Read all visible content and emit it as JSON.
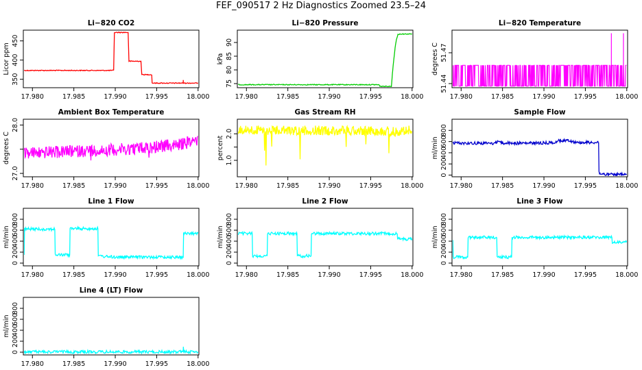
{
  "title": "FEF_090517  2 Hz Diagnostics Zoomed 23.5–24",
  "chart_data": [
    {
      "type": "line",
      "title": "Li−820 CO2",
      "ylabel": "Licor ppm",
      "color": "#ff0000",
      "xlim": [
        17.9789,
        18.0001
      ],
      "ylim": [
        328,
        478
      ],
      "xticks": [
        "17.980",
        "17.985",
        "17.990",
        "17.995",
        "18.000"
      ],
      "yticks": [
        "350",
        "400",
        "450"
      ],
      "x": [
        17.979,
        17.9898,
        17.98981,
        17.9899,
        17.99155,
        17.99165,
        17.9931,
        17.9932,
        17.9944,
        17.99445,
        17.9982,
        17.99821,
        17.99822,
        18.0
      ],
      "y": [
        373,
        373,
        375,
        472,
        472,
        397,
        397,
        362,
        362,
        340,
        340,
        348,
        340,
        340
      ],
      "series": []
    },
    {
      "type": "line",
      "title": "Li−820 Pressure",
      "ylabel": "kPa",
      "color": "#00cc00",
      "xlim": [
        17.9789,
        18.0001
      ],
      "ylim": [
        73.5,
        94.5
      ],
      "xticks": [
        "17.980",
        "17.985",
        "17.990",
        "17.995",
        "18.000"
      ],
      "yticks": [
        "75",
        "80",
        "85",
        "90"
      ],
      "x": [
        17.979,
        17.996,
        17.9961,
        17.9975,
        17.99765,
        17.9978,
        17.99795,
        17.9981,
        17.9983,
        17.9985,
        18.0
      ],
      "y": [
        74.6,
        74.6,
        74.0,
        74.0,
        79.5,
        84.0,
        88.0,
        91.0,
        92.9,
        93.1,
        93.1
      ],
      "series": []
    },
    {
      "type": "line",
      "title": "Li−820 Temperature",
      "ylabel": "degrees C",
      "color": "#ff00ff",
      "xlim": [
        17.9789,
        18.0001
      ],
      "ylim": [
        51.436,
        51.492
      ],
      "xticks": [
        "17.980",
        "17.985",
        "17.990",
        "17.995",
        "18.000"
      ],
      "yticks": [
        "51.44",
        "51.47"
      ],
      "x": [
        17.979,
        17.98,
        17.981,
        17.99814,
        17.9815,
        17.983,
        17.986,
        17.988,
        17.99,
        17.992,
        17.994,
        17.996,
        17.998,
        17.9996,
        17.99965,
        18.0
      ],
      "y": [
        51.4578,
        51.4578,
        51.4578,
        51.489,
        51.4578,
        51.4578,
        51.4578,
        51.4578,
        51.4578,
        51.4578,
        51.4578,
        51.4578,
        51.4578,
        51.489,
        51.4578,
        51.4578
      ],
      "series": []
    },
    {
      "type": "line",
      "title": "Ambient Box Temperature",
      "ylabel": "degrees C",
      "color": "#ff00ff",
      "xlim": [
        17.9789,
        18.0001
      ],
      "ylim": [
        26.93,
        28.12
      ],
      "xticks": [
        "17.980",
        "17.985",
        "17.990",
        "17.995",
        "18.000"
      ],
      "yticks": [
        "27.0",
        "",
        "28.0"
      ],
      "x": [
        17.979,
        17.983,
        17.987,
        17.991,
        17.995,
        17.998,
        18.0
      ],
      "y": [
        27.42,
        27.44,
        27.47,
        27.5,
        27.55,
        27.6,
        27.7
      ],
      "series": []
    },
    {
      "type": "line",
      "title": "Gas Stream RH",
      "ylabel": "percent",
      "color": "#ffff00",
      "xlim": [
        17.9789,
        18.0001
      ],
      "ylim": [
        0.38,
        2.55
      ],
      "xticks": [
        "17.980",
        "17.985",
        "17.990",
        "17.995",
        "18.000"
      ],
      "yticks": [
        "1.0",
        "",
        "2.0"
      ],
      "x": [
        17.979,
        17.983,
        17.987,
        17.991,
        17.995,
        17.998,
        18.0
      ],
      "y": [
        2.15,
        2.12,
        2.13,
        2.12,
        2.13,
        2.08,
        2.15
      ],
      "series": []
    },
    {
      "type": "line",
      "title": "Sample Flow",
      "ylabel": "ml/min",
      "color": "#0000cc",
      "xlim": [
        17.9789,
        18.0001
      ],
      "ylim": [
        -30,
        1000
      ],
      "xticks": [
        "17.980",
        "17.985",
        "17.990",
        "17.995",
        "18.000"
      ],
      "yticks": [
        "0",
        "200",
        "400",
        "600",
        "800"
      ],
      "x": [
        17.979,
        17.984,
        17.98445,
        17.985,
        17.988,
        17.991,
        17.992,
        17.993,
        17.994,
        17.9966,
        17.99665,
        17.9968,
        17.9975,
        18.0
      ],
      "y": [
        575,
        570,
        610,
        575,
        570,
        580,
        620,
        620,
        585,
        585,
        60,
        20,
        10,
        10
      ],
      "series": []
    },
    {
      "type": "line",
      "title": "Line 1 Flow",
      "ylabel": "ml/min",
      "color": "#00ffff",
      "xlim": [
        17.9789,
        18.0001
      ],
      "ylim": [
        -50,
        1000
      ],
      "xticks": [
        "17.980",
        "17.985",
        "17.990",
        "17.995",
        "18.000"
      ],
      "yticks": [
        "0",
        "200",
        "400",
        "600",
        "800"
      ],
      "x": [
        17.979,
        17.97905,
        17.9827,
        17.98275,
        17.9845,
        17.98455,
        17.9879,
        17.98795,
        17.99,
        17.9982,
        17.99825,
        18.0
      ],
      "y": [
        150,
        620,
        620,
        150,
        150,
        630,
        630,
        130,
        110,
        110,
        540,
        540
      ],
      "series": []
    },
    {
      "type": "line",
      "title": "Line 2 Flow",
      "ylabel": "ml/min",
      "color": "#00ffff",
      "xlim": [
        17.9789,
        18.0001
      ],
      "ylim": [
        -50,
        1000
      ],
      "xticks": [
        "17.980",
        "17.985",
        "17.990",
        "17.995",
        "18.000"
      ],
      "yticks": [
        "0",
        "200",
        "400",
        "600",
        "800"
      ],
      "x": [
        17.979,
        17.9807,
        17.98075,
        17.9825,
        17.98255,
        17.9861,
        17.98615,
        17.9878,
        17.98785,
        17.9982,
        17.99825,
        18.0
      ],
      "y": [
        540,
        540,
        130,
        130,
        540,
        540,
        130,
        130,
        540,
        540,
        440,
        440
      ],
      "series": []
    },
    {
      "type": "line",
      "title": "Line 3 Flow",
      "ylabel": "ml/min",
      "color": "#00ffff",
      "xlim": [
        17.9789,
        18.0001
      ],
      "ylim": [
        -50,
        1000
      ],
      "xticks": [
        "17.980",
        "17.985",
        "17.990",
        "17.995",
        "18.000"
      ],
      "yticks": [
        "0",
        "200",
        "400",
        "600",
        "800"
      ],
      "x": [
        17.979,
        17.97905,
        17.9808,
        17.98085,
        17.9843,
        17.98435,
        17.9861,
        17.98615,
        17.9982,
        17.99825,
        18.0
      ],
      "y": [
        420,
        110,
        110,
        470,
        470,
        110,
        110,
        470,
        470,
        380,
        380
      ],
      "series": []
    },
    {
      "type": "line",
      "title": "Line 4 (LT) Flow",
      "ylabel": "ml/min",
      "color": "#00ffff",
      "xlim": [
        17.9789,
        18.0001
      ],
      "ylim": [
        -50,
        1000
      ],
      "xticks": [
        "17.980",
        "17.985",
        "17.990",
        "17.995",
        "18.000"
      ],
      "yticks": [
        "0",
        "200",
        "400",
        "600",
        "800"
      ],
      "x": [
        17.979,
        17.9982,
        17.99822,
        17.99825,
        17.9983,
        18.0
      ],
      "y": [
        5,
        5,
        100,
        40,
        5,
        5
      ],
      "series": []
    }
  ]
}
